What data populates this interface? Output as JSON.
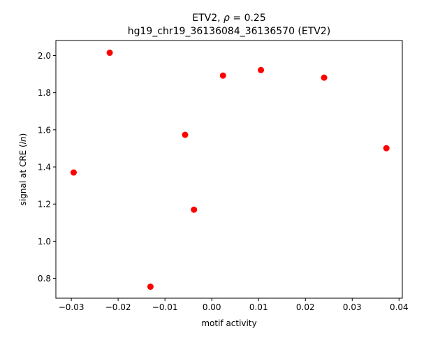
{
  "chart_data": {
    "type": "scatter",
    "title_line1_prefix": "ETV2, ",
    "title_line1_rho": "ρ",
    "title_line1_suffix": " = 0.25",
    "title_line2": "hg19_chr19_36136084_36136570 (ETV2)",
    "xlabel": "motif activity",
    "ylabel_prefix": "signal at CRE (",
    "ylabel_italic": "ln",
    "ylabel_suffix": ")",
    "xlim": [
      -0.0333,
      0.0407
    ],
    "ylim": [
      0.693,
      2.081
    ],
    "x_ticks": [
      -0.03,
      -0.02,
      -0.01,
      0.0,
      0.01,
      0.02,
      0.03,
      0.04
    ],
    "x_tick_labels": [
      "−0.03",
      "−0.02",
      "−0.01",
      "0.00",
      "0.01",
      "0.02",
      "0.03",
      "0.04"
    ],
    "y_ticks": [
      0.8,
      1.0,
      1.2,
      1.4,
      1.6,
      1.8,
      2.0
    ],
    "y_tick_labels": [
      "0.8",
      "1.0",
      "1.2",
      "1.4",
      "1.6",
      "1.8",
      "2.0"
    ],
    "marker_color": "#ff0000",
    "grid": false,
    "points": [
      {
        "x": -0.0295,
        "y": 1.37
      },
      {
        "x": -0.0218,
        "y": 2.015
      },
      {
        "x": -0.0131,
        "y": 0.755
      },
      {
        "x": -0.0057,
        "y": 1.573
      },
      {
        "x": -0.0038,
        "y": 1.17
      },
      {
        "x": 0.0024,
        "y": 1.892
      },
      {
        "x": 0.0105,
        "y": 1.922
      },
      {
        "x": 0.024,
        "y": 1.881
      },
      {
        "x": 0.0373,
        "y": 1.501
      }
    ]
  }
}
